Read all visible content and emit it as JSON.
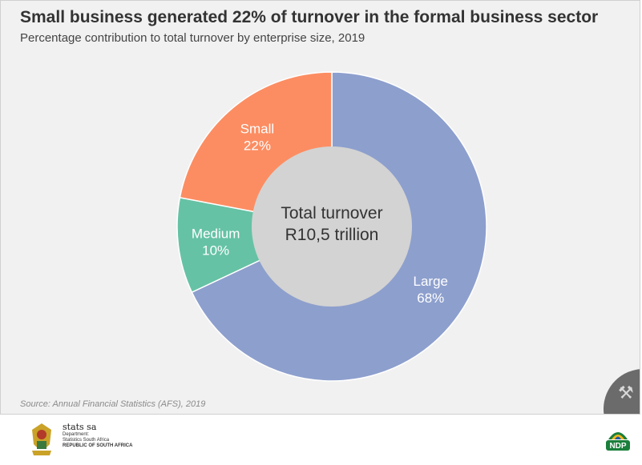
{
  "header": {
    "title": "Small business generated 22% of turnover in the formal business sector",
    "subtitle": "Percentage contribution to total turnover by enterprise size, 2019"
  },
  "chart_data": {
    "type": "pie",
    "variant": "donut",
    "center_label_lines": [
      "Total turnover",
      "R10,5 trillion"
    ],
    "slices": [
      {
        "name": "Large",
        "value": 68,
        "label": "68%",
        "color": "#8d9fcd"
      },
      {
        "name": "Medium",
        "value": 10,
        "label": "10%",
        "color": "#66c2a5"
      },
      {
        "name": "Small",
        "value": 22,
        "label": "22%",
        "color": "#fc8d62"
      }
    ],
    "center_color": "#d3d3d3",
    "legend": "none"
  },
  "source": "Source: Annual Financial Statistics (AFS), 2019",
  "footer": {
    "logo": {
      "name": "stats sa",
      "line1": "Department:",
      "line2": "Statistics South Africa",
      "line3": "REPUBLIC OF SOUTH AFRICA"
    },
    "ndp_logo": "NDP"
  },
  "icons": {
    "corner": "tools-icon"
  }
}
